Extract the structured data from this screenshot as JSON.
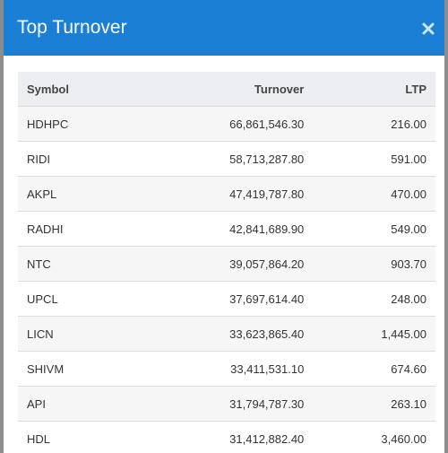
{
  "header": {
    "title": "Top Turnover"
  },
  "table": {
    "columns": [
      "Symbol",
      "Turnover",
      "LTP"
    ],
    "rows": [
      [
        "HDHPC",
        "66,861,546.30",
        "216.00"
      ],
      [
        "RIDI",
        "58,713,287.80",
        "591.00"
      ],
      [
        "AKPL",
        "47,419,787.80",
        "470.00"
      ],
      [
        "RADHI",
        "42,841,689.90",
        "549.00"
      ],
      [
        "NTC",
        "39,057,864.20",
        "903.70"
      ],
      [
        "UPCL",
        "37,697,614.40",
        "248.00"
      ],
      [
        "LICN",
        "33,623,865.40",
        "1,445.00"
      ],
      [
        "SHIVM",
        "33,411,531.10",
        "674.60"
      ],
      [
        "API",
        "31,794,787.30",
        "263.10"
      ],
      [
        "HDL",
        "31,412,882.40",
        "3,460.00"
      ]
    ]
  }
}
